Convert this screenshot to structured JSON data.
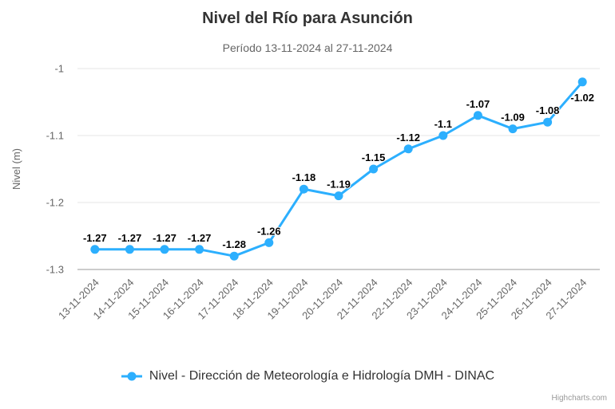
{
  "chart_data": {
    "type": "line",
    "title": "Nivel del Río para Asunción",
    "subtitle": "Período 13-11-2024 al 27-11-2024",
    "categories": [
      "13-11-2024",
      "14-11-2024",
      "15-11-2024",
      "16-11-2024",
      "17-11-2024",
      "18-11-2024",
      "19-11-2024",
      "20-11-2024",
      "21-11-2024",
      "22-11-2024",
      "23-11-2024",
      "24-11-2024",
      "25-11-2024",
      "26-11-2024",
      "27-11-2024"
    ],
    "series": [
      {
        "name": "Nivel - Dirección de Meteorología e Hidrología DMH - DINAC",
        "values": [
          -1.27,
          -1.27,
          -1.27,
          -1.27,
          -1.28,
          -1.26,
          -1.18,
          -1.19,
          -1.15,
          -1.12,
          -1.1,
          -1.07,
          -1.09,
          -1.08,
          -1.02
        ],
        "color": "#2caffe"
      }
    ],
    "data_labels": [
      "-1.27",
      "-1.27",
      "-1.27",
      "-1.27",
      "-1.28",
      "-1.26",
      "-1.18",
      "-1.19",
      "-1.15",
      "-1.12",
      "-1.1",
      "-1.07",
      "-1.09",
      "-1.08",
      "-1.02"
    ],
    "xlabel": "",
    "ylabel": "Nivel (m)",
    "ylim": [
      -1.3,
      -1.0
    ],
    "yticks": [
      -1,
      -1.1,
      -1.2,
      -1.3
    ],
    "ytick_labels": [
      "-1",
      "-1.1",
      "-1.2",
      "-1.3"
    ],
    "grid": true,
    "legend_position": "bottom"
  },
  "colors": {
    "series": "#2caffe",
    "gridline": "#e6e6e6",
    "axis_line": "#999999",
    "title": "#333333",
    "subtitle": "#666666",
    "axis_text": "#666666",
    "data_label": "#000000",
    "credits": "#999999"
  },
  "credits": {
    "label": "Highcharts.com"
  }
}
